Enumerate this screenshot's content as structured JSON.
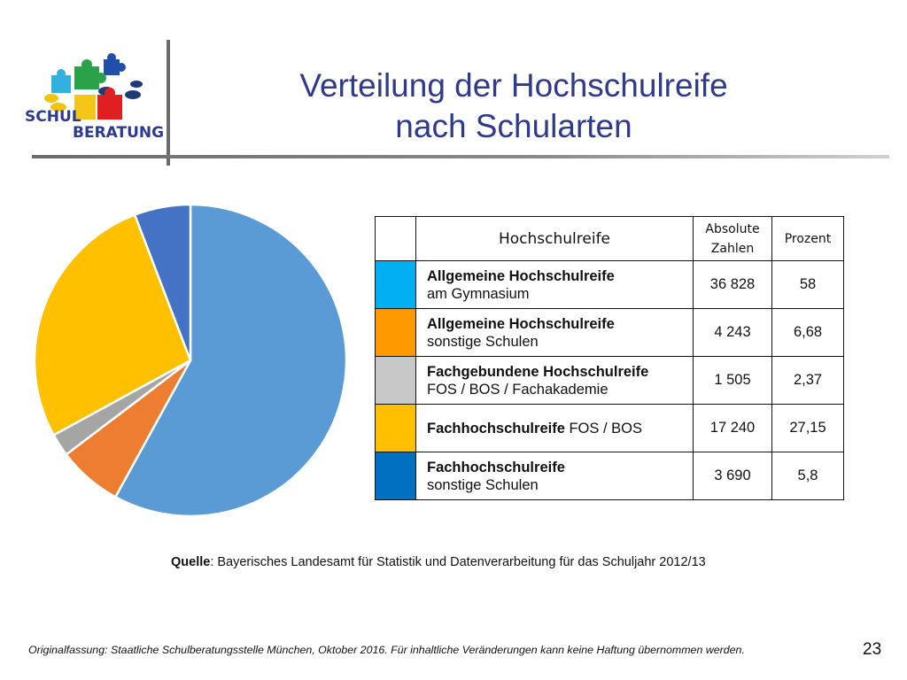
{
  "logo": {
    "line1": "SCHUL",
    "line2": "BERATUNG"
  },
  "title": {
    "line1": "Verteilung der Hochschulreife",
    "line2": "nach Schularten"
  },
  "table": {
    "header": {
      "name": "Hochschulreife",
      "abs_line1": "Absolute",
      "abs_line2": "Zahlen",
      "pct": "Prozent"
    },
    "rows": [
      {
        "color": "#00b0f0",
        "bold": "Allgemeine Hochschulreife",
        "normal": "am Gymnasium",
        "abs": "36 828",
        "pct": "58"
      },
      {
        "color": "#ff9900",
        "bold": "Allgemeine Hochschulreife",
        "normal": "sonstige Schulen",
        "abs": "4 243",
        "pct": "6,68"
      },
      {
        "color": "#c8c8c8",
        "bold": "Fachgebundene Hochschulreife",
        "normal": "FOS / BOS / Fachakademie",
        "abs": "1 505",
        "pct": "2,37"
      },
      {
        "color": "#ffc000",
        "bold": "Fachhochschulreife",
        "inline": " FOS / BOS",
        "normal": "",
        "abs": "17 240",
        "pct": "27,15"
      },
      {
        "color": "#0070c0",
        "bold": "Fachhochschulreife",
        "normal": "sonstige Schulen",
        "abs": "3 690",
        "pct": "5,8"
      }
    ]
  },
  "chart_data": {
    "type": "pie",
    "title": "",
    "categories": [
      "Allgemeine Hochschulreife am Gymnasium",
      "Allgemeine Hochschulreife sonstige Schulen",
      "Fachgebundene Hochschulreife FOS / BOS / Fachakademie",
      "Fachhochschulreife FOS / BOS",
      "Fachhochschulreife sonstige Schulen"
    ],
    "values": [
      36828,
      4243,
      1505,
      17240,
      3690
    ],
    "colors": [
      "#5b9bd5",
      "#ed7d31",
      "#a5a5a5",
      "#ffc000",
      "#4472c4"
    ],
    "start_angle_deg": 0,
    "direction": "clockwise"
  },
  "source": {
    "label": "Quelle",
    "text": ": Bayerisches Landesamt für Statistik und Datenverarbeitung für das Schuljahr 2012/13"
  },
  "footer": "Originalfassung: Staatliche Schulberatungsstelle München, Oktober 2016.  Für inhaltliche Veränderungen kann keine Haftung übernommen werden.",
  "page_number": "23"
}
